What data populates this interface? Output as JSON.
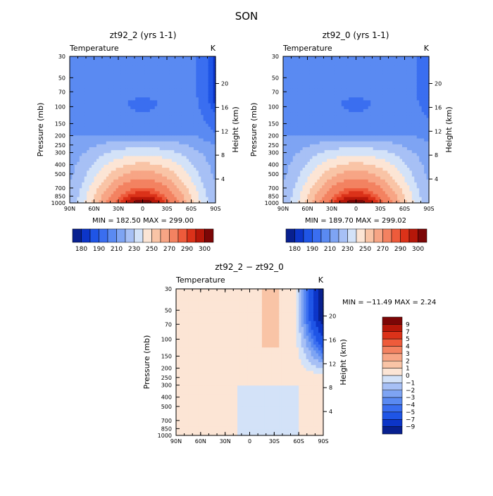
{
  "figure_title": "SON",
  "colors": {
    "temperature_palette": [
      "#08208f",
      "#0c35c8",
      "#1f55e6",
      "#3a6ef0",
      "#5a8af2",
      "#7ea4f3",
      "#a7c0f5",
      "#d3e2f8",
      "#fce5d5",
      "#f9c4a6",
      "#f7a585",
      "#f38261",
      "#ee5b3b",
      "#db3219",
      "#b61709",
      "#7c0606"
    ],
    "diff_palette": [
      "#08208f",
      "#0c35c8",
      "#1f55e6",
      "#3a6ef0",
      "#5a8af2",
      "#7ea4f3",
      "#a7c0f5",
      "#d3e2f8",
      "#fce5d5",
      "#f9c4a6",
      "#f7a585",
      "#f38261",
      "#ee5b3b",
      "#db3219",
      "#b61709",
      "#7c0606"
    ]
  },
  "chart_data": [
    {
      "type": "heatmap",
      "title": "zt92_2 (yrs 1-1)",
      "field_label": "Temperature",
      "units": "K",
      "ylabel": "Pressure (mb)",
      "ylabel_right": "Height (km)",
      "x_ticks": [
        "90N",
        "60N",
        "30N",
        "0",
        "30S",
        "60S",
        "90S"
      ],
      "x_range": [
        90,
        -90
      ],
      "p_ticks": [
        "30",
        "50",
        "70",
        "100",
        "150",
        "200",
        "250",
        "300",
        "400",
        "500",
        "700",
        "850",
        "1000"
      ],
      "height_ticks": [
        "4",
        "8",
        "12",
        "16",
        "20"
      ],
      "min_max": "MIN = 182.50   MAX = 299.00",
      "colorbar_ticks": [
        "180",
        "190",
        "210",
        "230",
        "250",
        "270",
        "290",
        "300"
      ],
      "cold_core_k": 190,
      "surface_max_k": 299.0
    },
    {
      "type": "heatmap",
      "title": "zt92_0 (yrs 1-1)",
      "field_label": "Temperature",
      "units": "K",
      "ylabel": "Pressure (mb)",
      "ylabel_right": "Height (km)",
      "x_ticks": [
        "90N",
        "60N",
        "30N",
        "0",
        "30S",
        "60S",
        "90S"
      ],
      "x_range": [
        90,
        -90
      ],
      "p_ticks": [
        "30",
        "50",
        "70",
        "100",
        "150",
        "200",
        "250",
        "300",
        "400",
        "500",
        "700",
        "850",
        "1000"
      ],
      "height_ticks": [
        "4",
        "8",
        "12",
        "16",
        "20"
      ],
      "min_max": "MIN = 189.70   MAX = 299.02",
      "colorbar_ticks": [
        "180",
        "190",
        "210",
        "230",
        "250",
        "270",
        "290",
        "300"
      ],
      "cold_core_k": 191,
      "surface_max_k": 299.02
    },
    {
      "type": "heatmap",
      "title": "zt92_2 − zt92_0",
      "field_label": "Temperature",
      "units": "K",
      "ylabel": "Pressure (mb)",
      "ylabel_right": "Height (km)",
      "x_ticks": [
        "90N",
        "60N",
        "30N",
        "0",
        "30S",
        "60S",
        "90S"
      ],
      "x_range": [
        90,
        -90
      ],
      "p_ticks": [
        "30",
        "50",
        "70",
        "100",
        "150",
        "200",
        "250",
        "300",
        "400",
        "500",
        "700",
        "850",
        "1000"
      ],
      "height_ticks": [
        "4",
        "8",
        "12",
        "16",
        "20"
      ],
      "min_max": "MIN = −11.49   MAX =    2.24",
      "colorbar_ticks": [
        "9",
        "7",
        "5",
        "4",
        "3",
        "2",
        "1",
        "0",
        "−1",
        "−2",
        "−3",
        "−4",
        "−5",
        "−7",
        "−9"
      ],
      "min_value": -11.49,
      "max_value": 2.24
    }
  ]
}
